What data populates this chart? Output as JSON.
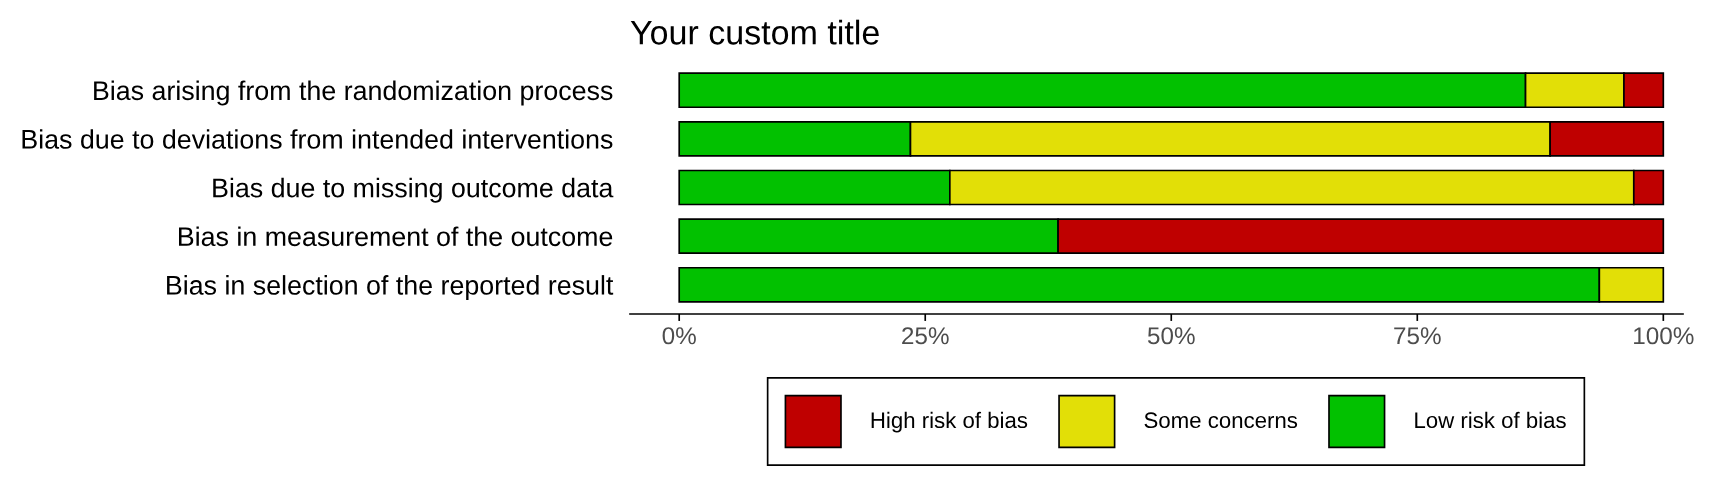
{
  "chart_data": {
    "type": "bar",
    "orientation": "horizontal",
    "stacked": true,
    "title": "Your custom title",
    "categories": [
      "Bias arising from the randomization process",
      "Bias due to deviations from intended interventions",
      "Bias due to missing outcome data",
      "Bias in measurement of the outcome",
      "Bias in selection of the reported result"
    ],
    "series": [
      {
        "name": "Low risk of bias",
        "color": "#02c100",
        "values": [
          86,
          23.5,
          27.5,
          38.5,
          93.5
        ]
      },
      {
        "name": "Some concerns",
        "color": "#e2df07",
        "values": [
          10,
          65,
          69.5,
          null,
          6.5
        ]
      },
      {
        "name": "High risk of bias",
        "color": "#bf0000",
        "values": [
          4,
          11.5,
          3,
          61.5,
          null
        ]
      }
    ],
    "xlim": [
      -5,
      102
    ],
    "xticks": [
      {
        "value": 0,
        "label": "0%"
      },
      {
        "value": 25,
        "label": "25%"
      },
      {
        "value": 50,
        "label": "50%"
      },
      {
        "value": 75,
        "label": "75%"
      },
      {
        "value": 100,
        "label": "100%"
      }
    ],
    "legend": "bottom"
  }
}
